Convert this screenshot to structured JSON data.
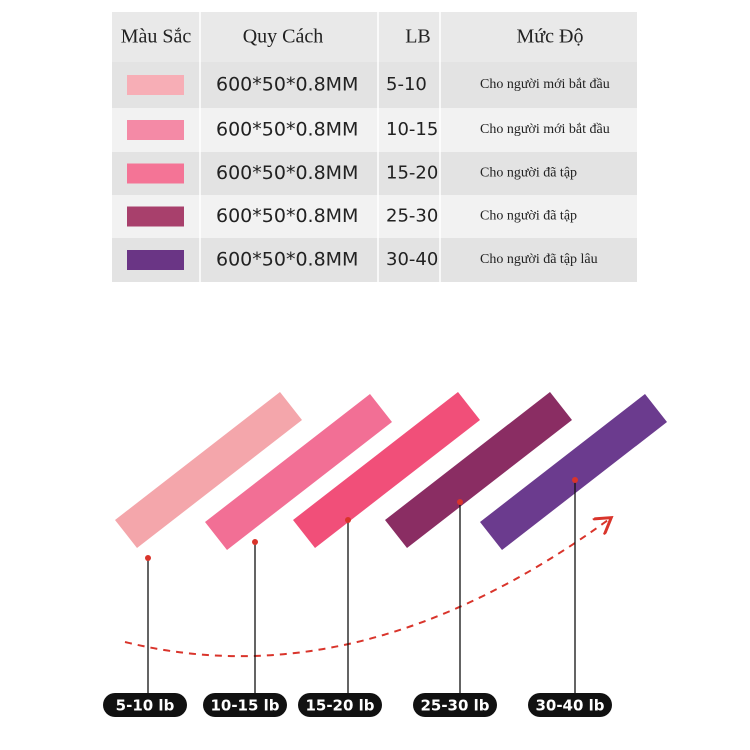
{
  "table": {
    "header": [
      "Màu Sắc",
      "Quy Cách",
      "LB",
      "Mức Độ"
    ],
    "rows": [
      {
        "color": "#f7aeb6",
        "spec": "600*50*0.8MM",
        "lb": "5-10",
        "level": "Cho người mới bắt đầu"
      },
      {
        "color": "#f48aa6",
        "spec": "600*50*0.8MM",
        "lb": "10-15",
        "level": "Cho người mới bắt đầu"
      },
      {
        "color": "#f47496",
        "spec": "600*50*0.8MM",
        "lb": "15-20",
        "level": "Cho người đã tập"
      },
      {
        "color": "#a8406c",
        "spec": "600*50*0.8MM",
        "lb": "25-30",
        "level": "Cho người đã tập"
      },
      {
        "color": "#6a3585",
        "spec": "600*50*0.8MM",
        "lb": "30-40",
        "level": "Cho người đã tập lâu"
      }
    ]
  },
  "bands": [
    {
      "color": "#f4a6ab",
      "label": "5-10 lb"
    },
    {
      "color": "#f26f95",
      "label": "10-15 lb"
    },
    {
      "color": "#f14f79",
      "label": "15-20 lb"
    },
    {
      "color": "#8a2d63",
      "label": "25-30 lb"
    },
    {
      "color": "#6b3b8e",
      "label": "30-40 lb"
    }
  ]
}
